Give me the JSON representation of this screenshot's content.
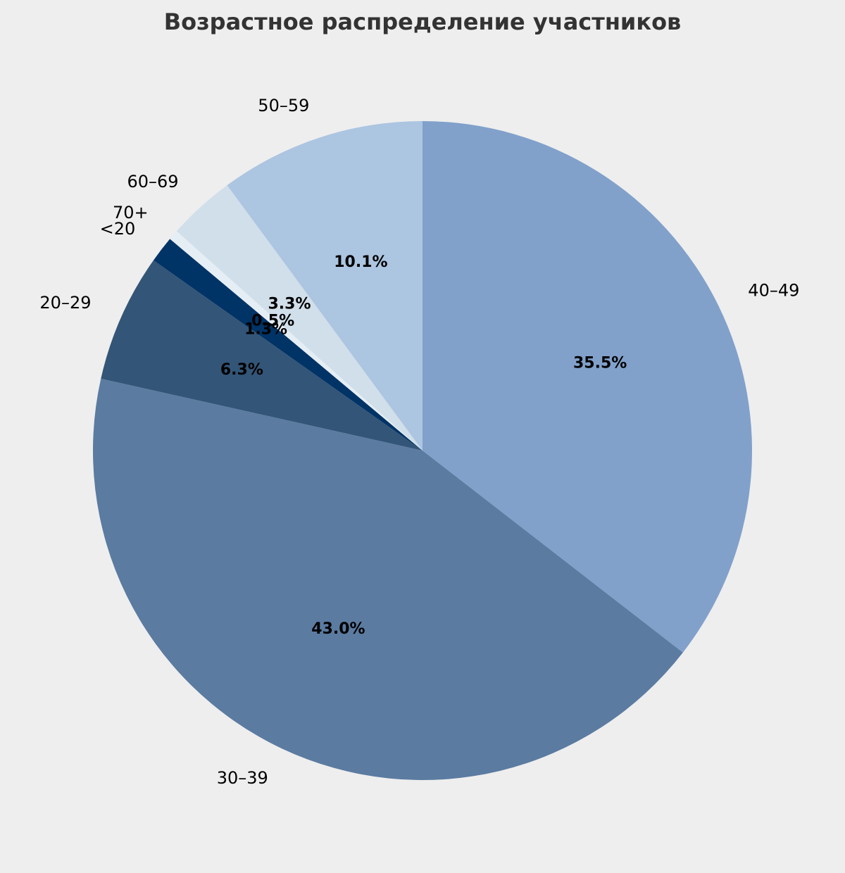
{
  "chart_data": {
    "type": "pie",
    "title": "Возрастное распределение участников",
    "start_angle_deg": 90,
    "direction": "clockwise",
    "categories": [
      "<20",
      "20–29",
      "30–39",
      "40–49",
      "50–59",
      "60–69",
      "70+"
    ],
    "values": [
      1.3,
      6.3,
      43.0,
      35.5,
      10.1,
      3.3,
      0.5
    ],
    "value_labels": [
      "1.3%",
      "6.3%",
      "43.0%",
      "35.5%",
      "10.1%",
      "3.3%",
      "0.5%"
    ],
    "slice_order": [
      "40–49",
      "30–39",
      "20–29",
      "<20",
      "70+",
      "60–69",
      "50–59"
    ],
    "colors": {
      "<20": "#003366",
      "20–29": "#335577",
      "30–39": "#5b7ba1",
      "40–49": "#81a1cb",
      "50–59": "#acc5e1",
      "60–69": "#d0dfea",
      "70+": "#e6eef5"
    },
    "background": "#eeeeee"
  }
}
